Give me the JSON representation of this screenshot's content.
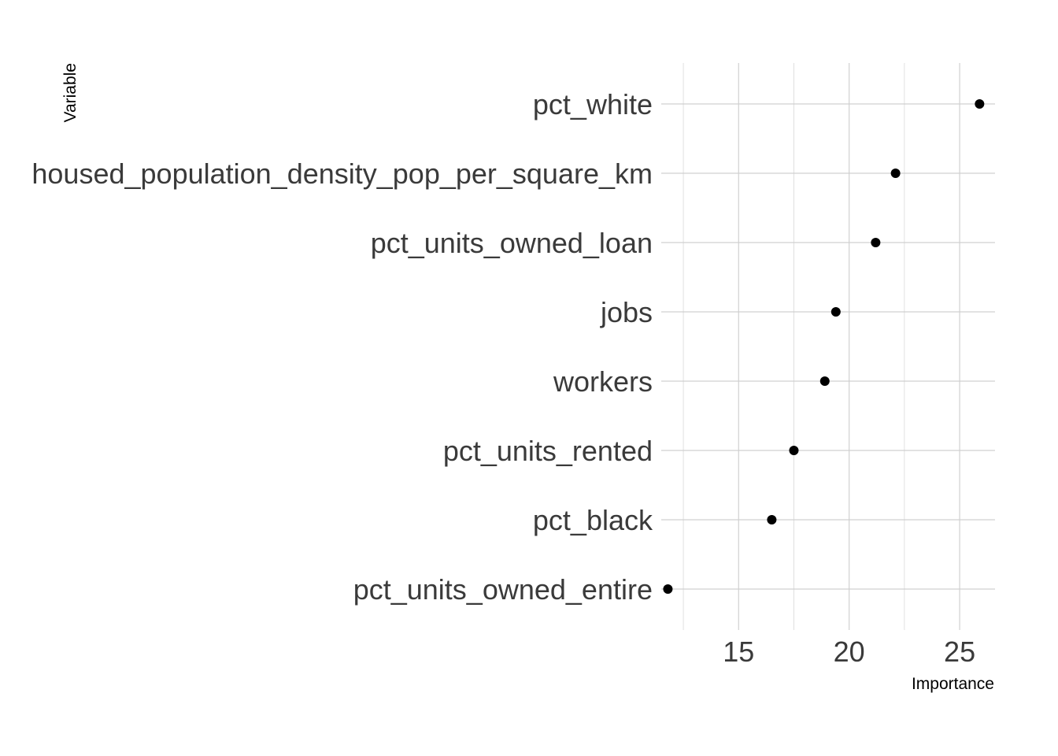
{
  "chart_data": {
    "type": "scatter",
    "title": "",
    "xlabel": "Importance",
    "ylabel": "Variable",
    "xlim": [
      11.5,
      26.6
    ],
    "x_ticks": [
      15,
      20,
      25
    ],
    "x_tick_labels": [
      "15",
      "20",
      "25"
    ],
    "x_minor_gridlines": [
      12.5,
      17.5,
      22.5
    ],
    "grid": true,
    "legend": "none",
    "point_color": "#000000",
    "categories": [
      "pct_white",
      "housed_population_density_pop_per_square_km",
      "pct_units_owned_loan",
      "jobs",
      "workers",
      "pct_units_rented",
      "pct_black",
      "pct_units_owned_entire"
    ],
    "values": [
      25.9,
      22.1,
      21.2,
      19.4,
      18.9,
      17.5,
      16.5,
      11.8
    ]
  }
}
